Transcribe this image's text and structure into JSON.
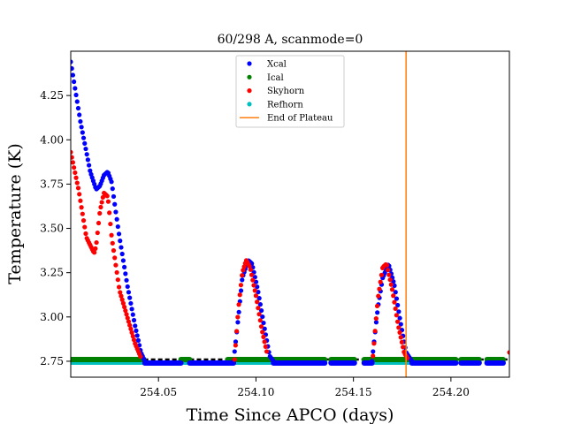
{
  "chart_data": {
    "type": "scatter",
    "title": "60/298 A, scanmode=0",
    "xlabel": "Time Since APCO (days)",
    "ylabel": "Temperature (K)",
    "xlim": [
      254.005,
      254.23
    ],
    "ylim": [
      2.66,
      4.5
    ],
    "xticks": [
      "254.05",
      "254.10",
      "254.15",
      "254.20"
    ],
    "yticks": [
      "2.75",
      "3.00",
      "3.25",
      "3.50",
      "3.75",
      "4.00",
      "4.25"
    ],
    "grid": false,
    "legend_position": "upper-center",
    "vertical_line": {
      "name": "End of Plateau",
      "x": 254.177,
      "color": "#ff7f0e"
    },
    "baseline": {
      "value": 2.76,
      "color": "#000000"
    },
    "gaps": [
      [
        254.0425,
        254.0615
      ],
      [
        254.066,
        254.0855
      ],
      [
        254.1353,
        254.1385
      ],
      [
        254.1505,
        254.1555
      ],
      [
        254.2025,
        254.2052
      ],
      [
        254.2145,
        254.2185
      ],
      [
        254.2268,
        254.229
      ]
    ],
    "series": [
      {
        "name": "Xcal",
        "color": "#0000ff",
        "x": [
          254.005,
          254.01,
          254.015,
          254.018,
          254.02,
          254.022,
          254.024,
          254.026,
          254.028,
          254.03,
          254.034,
          254.038,
          254.041,
          254.043,
          254.0885,
          254.091,
          254.093,
          254.096,
          254.098,
          254.101,
          254.104,
          254.107,
          254.109,
          254.1595,
          254.1625,
          254.165,
          254.168,
          254.171,
          254.174,
          254.177,
          254.18
        ],
        "y": [
          4.44,
          4.1,
          3.82,
          3.72,
          3.74,
          3.8,
          3.82,
          3.76,
          3.6,
          3.45,
          3.18,
          2.95,
          2.8,
          2.75,
          2.75,
          3.0,
          3.22,
          3.32,
          3.3,
          3.15,
          2.96,
          2.78,
          2.75,
          2.75,
          3.05,
          3.22,
          3.3,
          3.18,
          2.98,
          2.8,
          2.75
        ],
        "flat_segments": [
          [
            254.043,
            254.0615
          ],
          [
            254.066,
            254.0885
          ],
          [
            254.109,
            254.1353
          ],
          [
            254.1385,
            254.1505
          ],
          [
            254.1555,
            254.1595
          ],
          [
            254.18,
            254.2025
          ],
          [
            254.2052,
            254.2145
          ],
          [
            254.2185,
            254.2268
          ]
        ],
        "flat_value": 2.74
      },
      {
        "name": "Ical",
        "color": "#008000",
        "x": [
          254.005,
          254.0425
        ],
        "y": [
          2.76,
          2.76
        ],
        "flat_segments": [
          [
            254.005,
            254.0425
          ],
          [
            254.0615,
            254.066
          ],
          [
            254.0855,
            254.1353
          ],
          [
            254.1385,
            254.1505
          ],
          [
            254.1555,
            254.2025
          ],
          [
            254.2052,
            254.2145
          ],
          [
            254.2185,
            254.2268
          ]
        ],
        "flat_value": 2.76
      },
      {
        "name": "Skyhorn",
        "color": "#ff0000",
        "x": [
          254.005,
          254.009,
          254.013,
          254.017,
          254.018,
          254.02,
          254.022,
          254.024,
          254.026,
          254.03,
          254.034,
          254.038,
          254.041,
          254.089,
          254.091,
          254.093,
          254.095,
          254.097,
          254.1,
          254.103,
          254.106,
          254.16,
          254.1625,
          254.165,
          254.167,
          254.17,
          254.173,
          254.176,
          254.178,
          254.23
        ],
        "y": [
          3.93,
          3.72,
          3.45,
          3.36,
          3.4,
          3.6,
          3.7,
          3.68,
          3.45,
          3.15,
          3.0,
          2.85,
          2.77,
          2.76,
          3.05,
          3.25,
          3.32,
          3.28,
          3.12,
          2.93,
          2.78,
          2.78,
          3.1,
          3.28,
          3.3,
          3.15,
          2.95,
          2.8,
          2.76,
          2.8
        ]
      },
      {
        "name": "Refhorn",
        "color": "#00bfbf",
        "x": [
          254.005,
          254.0425
        ],
        "y": [
          2.75,
          2.75
        ],
        "flat_segments": [
          [
            254.005,
            254.0425
          ],
          [
            254.0615,
            254.066
          ],
          [
            254.0855,
            254.1353
          ],
          [
            254.1385,
            254.1505
          ],
          [
            254.1555,
            254.2025
          ],
          [
            254.2052,
            254.2145
          ],
          [
            254.2185,
            254.2268
          ]
        ],
        "flat_value": 2.745
      }
    ]
  }
}
